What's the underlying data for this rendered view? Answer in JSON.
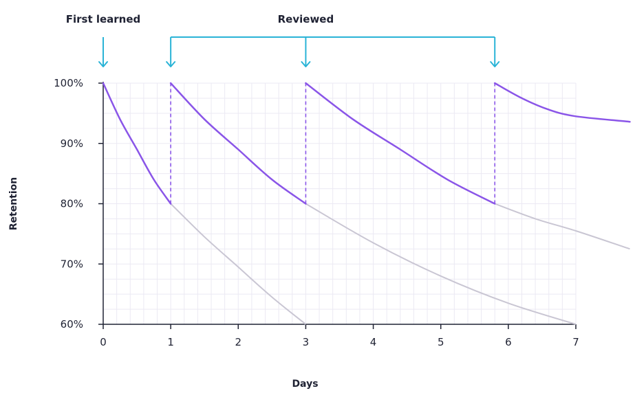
{
  "chart_data": {
    "type": "line",
    "title": "",
    "xlabel": "Days",
    "ylabel": "Retention",
    "xlim": [
      0,
      7
    ],
    "ylim": [
      60,
      100
    ],
    "x_ticks": [
      0,
      1,
      2,
      3,
      4,
      5,
      6,
      7
    ],
    "y_ticks": [
      60,
      70,
      80,
      90,
      100
    ],
    "y_tick_labels": [
      "60%",
      "70%",
      "80%",
      "90%",
      "100%"
    ],
    "grid": true,
    "colors": {
      "retention_line": "#8a55e8",
      "forgetting_line": "#c9c6d3",
      "arrow": "#29b3d6",
      "axis": "#1f2233",
      "grid": "#ebe9f3"
    },
    "annotations": {
      "first_learned": {
        "label": "First learned",
        "x": 0
      },
      "reviewed": {
        "label": "Reviewed",
        "x": [
          1,
          3,
          5.8
        ]
      }
    },
    "series": [
      {
        "role": "retention",
        "segments": [
          {
            "x": [
              0,
              0.25,
              0.5,
              0.75,
              1
            ],
            "y": [
              100,
              94,
              89,
              84,
              80
            ]
          },
          {
            "x": [
              1,
              1.5,
              2,
              2.5,
              3
            ],
            "y": [
              100,
              94,
              89,
              84,
              80
            ]
          },
          {
            "x": [
              3,
              3.7,
              4.4,
              5.1,
              5.8
            ],
            "y": [
              100,
              94,
              89,
              84,
              80
            ]
          },
          {
            "x": [
              5.8,
              6.2,
              6.6,
              7,
              7.8
            ],
            "y": [
              100,
              97.5,
              95.6,
              94.5,
              93.6
            ]
          }
        ]
      },
      {
        "role": "forgetting",
        "segments": [
          {
            "x": [
              1,
              1.5,
              2,
              2.5,
              3
            ],
            "y": [
              80,
              74.5,
              69.5,
              64.5,
              60
            ]
          },
          {
            "x": [
              3,
              4,
              5,
              6,
              7
            ],
            "y": [
              80,
              73.5,
              68,
              63.5,
              60
            ]
          },
          {
            "x": [
              5.8,
              6.4,
              7,
              7.8
            ],
            "y": [
              80,
              77.5,
              75.5,
              72.5
            ]
          }
        ]
      }
    ]
  }
}
